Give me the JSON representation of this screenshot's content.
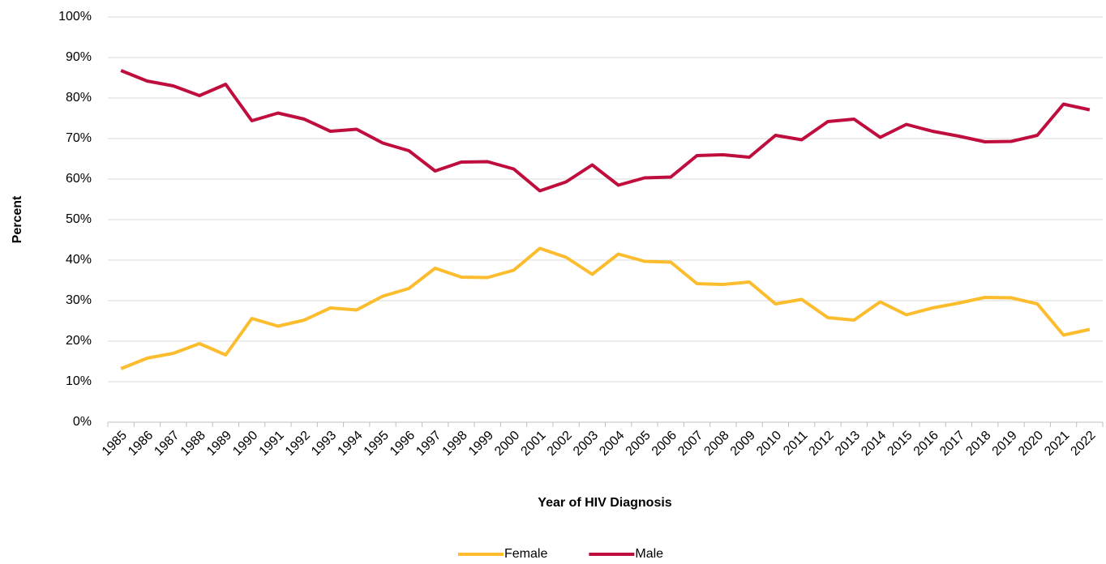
{
  "chart_data": {
    "type": "line",
    "x_label": "Year of HIV Diagnosis",
    "y_label": "Percent",
    "categories": [
      "1985",
      "1986",
      "1987",
      "1988",
      "1989",
      "1990",
      "1991",
      "1992",
      "1993",
      "1994",
      "1995",
      "1996",
      "1997",
      "1998",
      "1999",
      "2000",
      "2001",
      "2002",
      "2003",
      "2004",
      "2005",
      "2006",
      "2007",
      "2008",
      "2009",
      "2010",
      "2011",
      "2012",
      "2013",
      "2014",
      "2015",
      "2016",
      "2017",
      "2018",
      "2019",
      "2020",
      "2021",
      "2022"
    ],
    "series": [
      {
        "name": "Female",
        "color": "#fbbd2e",
        "values": [
          13.2,
          15.8,
          17,
          19.4,
          16.6,
          25.6,
          23.7,
          25.2,
          28.2,
          27.7,
          31.1,
          33,
          38,
          35.8,
          35.7,
          37.5,
          42.9,
          40.7,
          36.5,
          41.5,
          39.7,
          39.5,
          34.2,
          34,
          34.6,
          29.2,
          30.3,
          25.8,
          25.2,
          29.7,
          26.5,
          28.2,
          29.4,
          30.8,
          30.7,
          29.2,
          21.5,
          22.9
        ]
      },
      {
        "name": "Male",
        "color": "#bf0d3e",
        "values": [
          86.8,
          84.2,
          83,
          80.6,
          83.4,
          74.4,
          76.3,
          74.8,
          71.8,
          72.3,
          68.9,
          67,
          62,
          64.2,
          64.3,
          62.5,
          57.1,
          59.3,
          63.5,
          58.5,
          60.3,
          60.5,
          65.8,
          66,
          65.4,
          70.8,
          69.7,
          74.2,
          74.8,
          70.3,
          73.5,
          71.8,
          70.6,
          69.2,
          69.3,
          70.8,
          78.5,
          77.1
        ]
      }
    ],
    "ylim": [
      0,
      100
    ],
    "yticks": [
      {
        "value": 0,
        "label": "0%"
      },
      {
        "value": 10,
        "label": "10%"
      },
      {
        "value": 20,
        "label": "20%"
      },
      {
        "value": 30,
        "label": "30%"
      },
      {
        "value": 40,
        "label": "40%"
      },
      {
        "value": 50,
        "label": "50%"
      },
      {
        "value": 60,
        "label": "60%"
      },
      {
        "value": 70,
        "label": "70%"
      },
      {
        "value": 80,
        "label": "80%"
      },
      {
        "value": 90,
        "label": "90%"
      },
      {
        "value": 100,
        "label": "100%"
      }
    ],
    "grid": true,
    "legend": "bottom"
  }
}
